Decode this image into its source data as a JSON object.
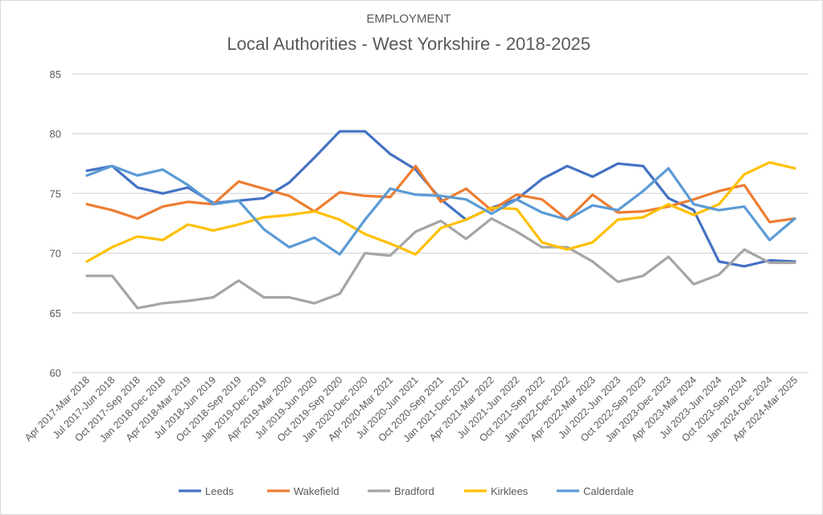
{
  "chart_data": {
    "type": "line",
    "title": "EMPLOYMENT",
    "subtitle": "Local Authorities - West Yorkshire - 2018-2025",
    "xlabel": "",
    "ylabel": "",
    "ylim": [
      60,
      85
    ],
    "yticks": [
      "60",
      "65",
      "70",
      "75",
      "80",
      "85"
    ],
    "grid": true,
    "legend_position": "bottom",
    "categories": [
      "Apr 2017-Mar 2018",
      "Jul 2017-Jun 2018",
      "Oct 2017-Sep 2018",
      "Jan 2018-Dec 2018",
      "Apr 2018-Mar 2019",
      "Jul 2018-Jun 2019",
      "Oct 2018-Sep 2019",
      "Jan 2019-Dec 2019",
      "Apr 2019-Mar 2020",
      "Jul 2019-Jun 2020",
      "Oct 2019-Sep 2020",
      "Jan 2020-Dec 2020",
      "Apr 2020-Mar 2021",
      "Jul 2020-Jun 2021",
      "Oct 2020-Sep 2021",
      "Jan 2021-Dec 2021",
      "Apr 2021-Mar 2022",
      "Jul 2021-Jun 2022",
      "Oct 2021-Sep 2022",
      "Jan 2022-Dec 2022",
      "Apr 2022-Mar 2023",
      "Jul 2022-Jun 2023",
      "Oct 2022-Sep 2023",
      "Jan 2023-Dec 2023",
      "Apr 2023-Mar 2024",
      "Jul 2023-Jun 2024",
      "Oct 2023-Sep 2024",
      "Jan 2024-Dec 2024",
      "Apr 2024-Mar 2025"
    ],
    "series": [
      {
        "name": "Leeds",
        "color": "#4472c4",
        "values": [
          76.9,
          77.3,
          75.5,
          75.0,
          75.5,
          74.2,
          74.4,
          74.6,
          75.9,
          78.0,
          80.2,
          80.2,
          78.3,
          77.0,
          74.5,
          72.8,
          73.8,
          74.5,
          76.2,
          77.3,
          76.4,
          77.5,
          77.3,
          74.6,
          73.6,
          69.3,
          68.9,
          69.4,
          69.3
        ]
      },
      {
        "name": "Wakefield",
        "color": "#ed7d31",
        "values": [
          74.1,
          73.6,
          72.9,
          73.9,
          74.3,
          74.1,
          76.0,
          75.4,
          74.8,
          73.5,
          75.1,
          74.8,
          74.7,
          77.3,
          74.3,
          75.4,
          73.6,
          74.9,
          74.5,
          72.8,
          74.9,
          73.4,
          73.5,
          73.9,
          74.5,
          75.2,
          75.7,
          72.6,
          72.9
        ]
      },
      {
        "name": "Bradford",
        "color": "#a5a5a5",
        "values": [
          68.1,
          68.1,
          65.4,
          65.8,
          66.0,
          66.3,
          67.7,
          66.3,
          66.3,
          65.8,
          66.6,
          70.0,
          69.8,
          71.8,
          72.7,
          71.2,
          72.9,
          71.8,
          70.5,
          70.5,
          69.3,
          67.6,
          68.1,
          69.7,
          67.4,
          68.2,
          70.3,
          69.2,
          69.2
        ]
      },
      {
        "name": "Kirklees",
        "color": "#ffc000",
        "values": [
          69.3,
          70.5,
          71.4,
          71.1,
          72.4,
          71.9,
          72.4,
          73.0,
          73.2,
          73.5,
          72.8,
          71.6,
          70.8,
          69.9,
          72.1,
          72.8,
          73.8,
          73.7,
          70.9,
          70.3,
          70.9,
          72.8,
          73.0,
          74.1,
          73.2,
          74.1,
          76.6,
          77.6,
          77.1
        ]
      },
      {
        "name": "Calderdale",
        "color": "#5b9bd5",
        "values": [
          76.5,
          77.3,
          76.5,
          77.0,
          75.7,
          74.1,
          74.4,
          72.0,
          70.5,
          71.3,
          69.9,
          72.8,
          75.4,
          74.9,
          74.8,
          74.5,
          73.3,
          74.5,
          73.4,
          72.8,
          74.0,
          73.6,
          75.2,
          77.1,
          74.1,
          73.6,
          73.9,
          71.1,
          72.9
        ]
      }
    ]
  }
}
